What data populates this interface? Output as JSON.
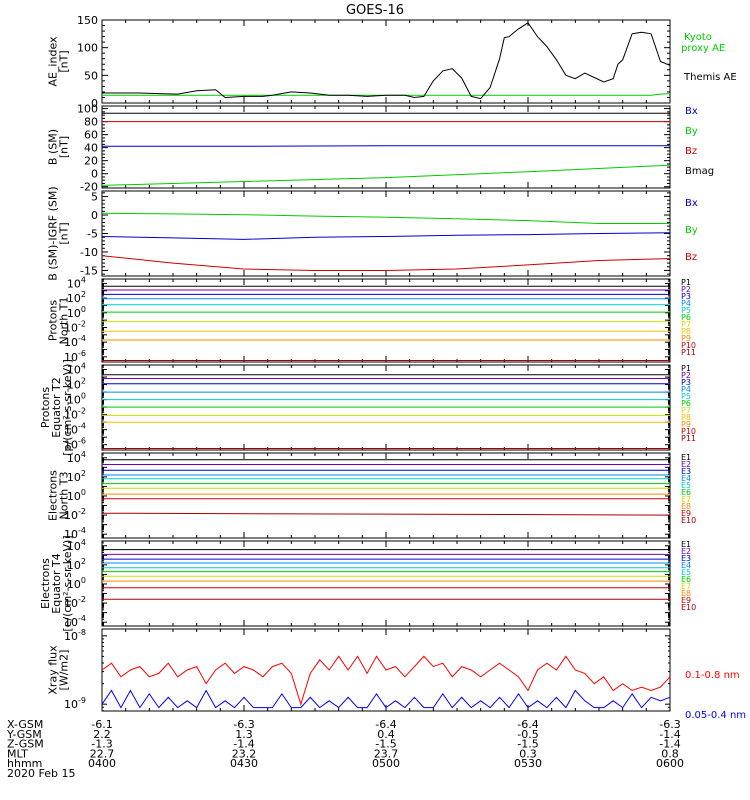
{
  "title": "GOES-16",
  "date_label": "2020 Feb 15",
  "x_axis": {
    "time_range": [
      "0400",
      "0600"
    ],
    "tick_times": [
      "0400",
      "0430",
      "0500",
      "0530",
      "0600"
    ],
    "tick_minutes": [
      0,
      30,
      60,
      90,
      120
    ],
    "rows": [
      {
        "label": "X-GSM",
        "values": [
          "-6.1",
          "-6.3",
          "-6.4",
          "-6.4",
          "-6.3"
        ]
      },
      {
        "label": "Y-GSM",
        "values": [
          "2.2",
          "1.3",
          "0.4",
          "-0.5",
          "-1.4"
        ]
      },
      {
        "label": "Z-GSM",
        "values": [
          "-1.3",
          "-1.4",
          "-1.5",
          "-1.5",
          "-1.4"
        ]
      },
      {
        "label": "MLT",
        "values": [
          "22.7",
          "23.2",
          "23.7",
          "0.3",
          "0.8"
        ]
      },
      {
        "label": "hhmm",
        "values": [
          "0400",
          "0430",
          "0500",
          "0530",
          "0600"
        ]
      }
    ]
  },
  "chart_data": [
    {
      "type": "line",
      "panel": "ae",
      "ylabel": [
        "AE_index",
        "[nT]"
      ],
      "ylim": [
        0,
        150
      ],
      "yticks": [
        0,
        50,
        100,
        150
      ],
      "tick_labels": [
        "0",
        "50",
        "100",
        "150"
      ],
      "minor_step": 10,
      "x": [
        0,
        4,
        8,
        12,
        16,
        20,
        24,
        26,
        30,
        34,
        36,
        40,
        44,
        48,
        52,
        56,
        60,
        64,
        66,
        68,
        70,
        72,
        74,
        76,
        78,
        80,
        82,
        84,
        85,
        86,
        88,
        90,
        92,
        94,
        96,
        98,
        100,
        102,
        104,
        106,
        108,
        109,
        110,
        112,
        114,
        116,
        118,
        120
      ],
      "series": [
        {
          "name": "Kyoto proxy AE",
          "color": "#00cc00",
          "values": [
            14,
            14,
            14,
            14,
            14,
            14,
            14,
            14,
            14,
            14,
            14,
            14,
            14,
            14,
            14,
            14,
            14,
            14,
            14,
            14,
            14,
            14,
            14,
            14,
            14,
            14,
            14,
            14,
            14,
            14,
            14,
            14,
            14,
            14,
            14,
            14,
            14,
            14,
            14,
            14,
            14,
            14,
            14,
            14,
            14,
            14,
            16,
            17
          ]
        },
        {
          "name": "Themis AE",
          "color": "#000000",
          "values": [
            18,
            18,
            18,
            17,
            16,
            22,
            24,
            10,
            12,
            12,
            14,
            20,
            18,
            14,
            14,
            12,
            14,
            14,
            10,
            12,
            40,
            58,
            62,
            45,
            12,
            8,
            28,
            80,
            118,
            120,
            134,
            145,
            120,
            102,
            78,
            50,
            44,
            54,
            46,
            38,
            44,
            70,
            78,
            125,
            128,
            125,
            75,
            68
          ]
        }
      ]
    },
    {
      "type": "line",
      "panel": "b_sm",
      "ylabel": [
        "B (SM)",
        "[nT]"
      ],
      "ylim": [
        -22,
        104
      ],
      "yticks": [
        -20,
        0,
        20,
        40,
        60,
        80,
        100
      ],
      "tick_labels": [
        "-20",
        "0",
        "20",
        "40",
        "60",
        "80",
        "100"
      ],
      "minor_step": 5,
      "x": [
        0,
        30,
        60,
        90,
        120
      ],
      "series": [
        {
          "name": "Bx",
          "color": "#0000cc",
          "values": [
            42,
            42,
            43,
            43,
            43
          ]
        },
        {
          "name": "By",
          "color": "#00cc00",
          "values": [
            -18,
            -12,
            -6,
            3,
            13
          ]
        },
        {
          "name": "Bz",
          "color": "#cc0000",
          "values": [
            80,
            80,
            80,
            80,
            80
          ]
        },
        {
          "name": "Bmag",
          "color": "#000000",
          "values": [
            93,
            93,
            93,
            93,
            93
          ]
        }
      ]
    },
    {
      "type": "line",
      "panel": "b_igrf",
      "ylabel": [
        "B (SM)-IGRF (SM)",
        "[nT]"
      ],
      "ylim": [
        -16.5,
        6.5
      ],
      "yticks": [
        -15,
        -10,
        -5,
        0,
        5
      ],
      "tick_labels": [
        "-15",
        "-10",
        "-5",
        "0",
        "5"
      ],
      "minor_step": 1,
      "x": [
        0,
        15,
        30,
        45,
        60,
        75,
        90,
        105,
        120
      ],
      "series": [
        {
          "name": "Bx",
          "color": "#0000cc",
          "values": [
            -5.8,
            -6.2,
            -6.6,
            -6.0,
            -5.8,
            -5.5,
            -5.3,
            -5.0,
            -4.8
          ]
        },
        {
          "name": "By",
          "color": "#00cc00",
          "values": [
            0.5,
            0.3,
            0.1,
            -0.3,
            -0.6,
            -1.0,
            -1.5,
            -2.3,
            -2.3
          ]
        },
        {
          "name": "Bz",
          "color": "#cc0000",
          "values": [
            -11.0,
            -13.0,
            -14.6,
            -15.0,
            -15.0,
            -14.6,
            -13.5,
            -12.3,
            -11.8
          ]
        }
      ]
    },
    {
      "type": "line",
      "panel": "protons_t1",
      "ylabel": [
        "Protons",
        "North T1"
      ],
      "ylog": true,
      "ylim_exp": [
        -6.7,
        4.6
      ],
      "tick_exps": [
        -6,
        -4,
        -2,
        0,
        2,
        4
      ],
      "tick_labels": [
        "10",
        "10",
        "10",
        "10",
        "10",
        "10"
      ],
      "tick_superscripts": [
        "-6",
        "-4",
        "-2",
        "0",
        "2",
        "4"
      ],
      "x": [
        0,
        120
      ],
      "series": [
        {
          "name": "P1",
          "color": "#000000",
          "exps": [
            3.6,
            3.6
          ]
        },
        {
          "name": "P2",
          "color": "#7700aa",
          "exps": [
            3.1,
            3.1
          ]
        },
        {
          "name": "P3",
          "color": "#0000cc",
          "exps": [
            2.5,
            2.5
          ]
        },
        {
          "name": "P4",
          "color": "#0088ff",
          "exps": [
            1.9,
            1.9
          ]
        },
        {
          "name": "P5",
          "color": "#00cccc",
          "exps": [
            1.1,
            1.1
          ]
        },
        {
          "name": "P6",
          "color": "#00cc00",
          "exps": [
            0.1,
            0.1
          ]
        },
        {
          "name": "P7",
          "color": "#ccdd00",
          "exps": [
            -1.2,
            -1.2
          ]
        },
        {
          "name": "P8",
          "color": "#ffbb00",
          "exps": [
            -2.5,
            -2.5
          ]
        },
        {
          "name": "P9",
          "color": "#ff8800",
          "exps": [
            -3.7,
            -3.7
          ]
        },
        {
          "name": "P10",
          "color": "#cc0000",
          "exps": [
            -6.5,
            -6.5
          ]
        },
        {
          "name": "P11",
          "color": "#aa0000",
          "exps": [
            -6.5,
            -6.5
          ]
        }
      ]
    },
    {
      "type": "line",
      "panel": "protons_t2",
      "ylabel": [
        "Protons",
        "Equator T2",
        "[p/(cm²-s-sr-keV)]"
      ],
      "ylog": true,
      "ylim_exp": [
        -6.7,
        4.6
      ],
      "tick_exps": [
        -6,
        -4,
        -2,
        0,
        2,
        4
      ],
      "tick_labels": [
        "10",
        "10",
        "10",
        "10",
        "10",
        "10"
      ],
      "tick_superscripts": [
        "-6",
        "-4",
        "-2",
        "0",
        "2",
        "4"
      ],
      "x": [
        0,
        120
      ],
      "series": [
        {
          "name": "P1",
          "color": "#000000",
          "exps": [
            3.3,
            3.3
          ]
        },
        {
          "name": "P2",
          "color": "#7700aa",
          "exps": [
            2.8,
            2.8
          ]
        },
        {
          "name": "P3",
          "color": "#0000cc",
          "exps": [
            2.1,
            2.1
          ]
        },
        {
          "name": "P4",
          "color": "#0088ff",
          "exps": [
            1.0,
            1.0
          ]
        },
        {
          "name": "P5",
          "color": "#00cccc",
          "exps": [
            0.0,
            0.0
          ]
        },
        {
          "name": "P6",
          "color": "#00cc00",
          "exps": [
            -1.0,
            -1.0
          ]
        },
        {
          "name": "P7",
          "color": "#ccdd00",
          "exps": [
            -2.1,
            -2.1
          ]
        },
        {
          "name": "P8",
          "color": "#ffbb00",
          "exps": [
            -3.0,
            -3.0
          ]
        },
        {
          "name": "P9",
          "color": "#ff8800",
          "exps": [
            -6.5,
            -6.5
          ]
        },
        {
          "name": "P10",
          "color": "#cc0000",
          "exps": [
            -6.5,
            -6.5
          ]
        },
        {
          "name": "P11",
          "color": "#aa0000",
          "exps": [
            -6.5,
            -6.5
          ]
        }
      ]
    },
    {
      "type": "line",
      "panel": "electrons_t3",
      "ylabel": [
        "Electrons",
        "North T3"
      ],
      "ylog": true,
      "ylim_exp": [
        -4.4,
        4.5
      ],
      "tick_exps": [
        -4,
        -2,
        0,
        2,
        4
      ],
      "tick_labels": [
        "10",
        "10",
        "10",
        "10",
        "10"
      ],
      "tick_superscripts": [
        "-4",
        "-2",
        "0",
        "2",
        "4"
      ],
      "x": [
        0,
        120
      ],
      "series": [
        {
          "name": "E1",
          "color": "#000000",
          "exps": [
            3.8,
            3.8
          ]
        },
        {
          "name": "E2",
          "color": "#7700aa",
          "exps": [
            3.3,
            3.3
          ]
        },
        {
          "name": "E3",
          "color": "#0000cc",
          "exps": [
            2.7,
            2.7
          ]
        },
        {
          "name": "E4",
          "color": "#0088ff",
          "exps": [
            2.2,
            2.2
          ]
        },
        {
          "name": "E5",
          "color": "#00cccc",
          "exps": [
            1.8,
            1.8
          ]
        },
        {
          "name": "E6",
          "color": "#00cc00",
          "exps": [
            1.3,
            1.3
          ]
        },
        {
          "name": "E7",
          "color": "#ccdd00",
          "exps": [
            0.8,
            0.8
          ]
        },
        {
          "name": "E8",
          "color": "#ff8800",
          "exps": [
            0.2,
            0.2
          ]
        },
        {
          "name": "E9",
          "color": "#cc0000",
          "exps": [
            -0.3,
            -0.3
          ]
        },
        {
          "name": "E10",
          "color": "#aa0000",
          "exps": [
            -1.8,
            -2.0
          ]
        }
      ]
    },
    {
      "type": "line",
      "panel": "electrons_t4",
      "ylabel": [
        "Electrons",
        "Equator T4",
        "[e/(cm²-s-sr-keV)]"
      ],
      "ylog": true,
      "ylim_exp": [
        -4.4,
        4.5
      ],
      "tick_exps": [
        -4,
        -2,
        0,
        2,
        4
      ],
      "tick_labels": [
        "10",
        "10",
        "10",
        "10",
        "10"
      ],
      "tick_superscripts": [
        "-4",
        "-2",
        "0",
        "2",
        "4"
      ],
      "x": [
        0,
        120
      ],
      "series": [
        {
          "name": "E1",
          "color": "#000000",
          "exps": [
            3.6,
            3.6
          ]
        },
        {
          "name": "E2",
          "color": "#7700aa",
          "exps": [
            3.1,
            3.1
          ]
        },
        {
          "name": "E3",
          "color": "#0000cc",
          "exps": [
            2.6,
            2.6
          ]
        },
        {
          "name": "E4",
          "color": "#0088ff",
          "exps": [
            2.2,
            2.2
          ]
        },
        {
          "name": "E5",
          "color": "#00cccc",
          "exps": [
            1.7,
            1.7
          ]
        },
        {
          "name": "E6",
          "color": "#00cc00",
          "exps": [
            1.3,
            1.3
          ]
        },
        {
          "name": "E7",
          "color": "#ccdd00",
          "exps": [
            0.8,
            0.8
          ]
        },
        {
          "name": "E8",
          "color": "#ff8800",
          "exps": [
            0.3,
            0.3
          ]
        },
        {
          "name": "E9",
          "color": "#cc0000",
          "exps": [
            -0.4,
            -0.4
          ]
        },
        {
          "name": "E10",
          "color": "#aa0000",
          "exps": [
            -1.6,
            -1.6
          ]
        }
      ]
    },
    {
      "type": "line",
      "panel": "xray",
      "ylabel": [
        "Xray flux",
        "[W/m2]"
      ],
      "ylog": true,
      "ylim_exp": [
        -9.1,
        -7.9
      ],
      "tick_exps": [
        -8,
        -9
      ],
      "tick_labels": [
        "10",
        "10"
      ],
      "tick_superscripts": [
        "-8",
        "-9"
      ],
      "x": [
        0,
        2,
        4,
        6,
        8,
        10,
        12,
        14,
        16,
        18,
        20,
        22,
        24,
        26,
        28,
        30,
        32,
        34,
        36,
        38,
        40,
        42,
        44,
        46,
        48,
        50,
        52,
        54,
        56,
        58,
        60,
        62,
        64,
        66,
        68,
        70,
        72,
        74,
        76,
        78,
        80,
        82,
        84,
        86,
        88,
        90,
        92,
        94,
        96,
        98,
        100,
        102,
        104,
        106,
        108,
        110,
        112,
        114,
        116,
        118,
        120
      ],
      "series": [
        {
          "name": "0.1-0.8 nm",
          "color": "#ff0000",
          "exps": [
            -8.5,
            -8.4,
            -8.6,
            -8.5,
            -8.45,
            -8.6,
            -8.55,
            -8.4,
            -8.6,
            -8.5,
            -8.45,
            -8.7,
            -8.5,
            -8.4,
            -8.55,
            -8.45,
            -8.5,
            -8.6,
            -8.45,
            -8.4,
            -8.55,
            -9.0,
            -8.55,
            -8.35,
            -8.5,
            -8.3,
            -8.5,
            -8.3,
            -8.55,
            -8.3,
            -8.5,
            -8.45,
            -8.6,
            -8.45,
            -8.3,
            -8.45,
            -8.4,
            -8.6,
            -8.45,
            -8.5,
            -8.6,
            -8.5,
            -8.4,
            -8.5,
            -8.6,
            -8.8,
            -8.5,
            -8.4,
            -8.5,
            -8.3,
            -8.5,
            -8.55,
            -8.7,
            -8.6,
            -8.8,
            -8.7,
            -8.8,
            -8.75,
            -8.8,
            -8.75,
            -8.6
          ]
        },
        {
          "name": "0.05-0.4 nm",
          "color": "#0000ff",
          "exps": [
            -9.0,
            -8.8,
            -9.05,
            -8.8,
            -9.05,
            -8.85,
            -9.05,
            -8.9,
            -9.05,
            -8.95,
            -9.05,
            -8.8,
            -9.05,
            -8.95,
            -9.05,
            -8.9,
            -9.05,
            -9.05,
            -9.05,
            -8.85,
            -9.05,
            -9.05,
            -8.9,
            -9.05,
            -8.95,
            -9.05,
            -8.9,
            -9.05,
            -9.05,
            -8.85,
            -9.05,
            -8.95,
            -9.05,
            -8.9,
            -9.05,
            -9.05,
            -8.85,
            -9.05,
            -8.9,
            -9.05,
            -8.95,
            -9.05,
            -8.9,
            -9.05,
            -8.85,
            -9.05,
            -8.95,
            -9.05,
            -8.9,
            -9.05,
            -8.8,
            -8.95,
            -9.05,
            -9.05,
            -8.95,
            -9.05,
            -8.85,
            -9.05,
            -8.9,
            -8.95,
            -8.9
          ]
        }
      ]
    }
  ]
}
